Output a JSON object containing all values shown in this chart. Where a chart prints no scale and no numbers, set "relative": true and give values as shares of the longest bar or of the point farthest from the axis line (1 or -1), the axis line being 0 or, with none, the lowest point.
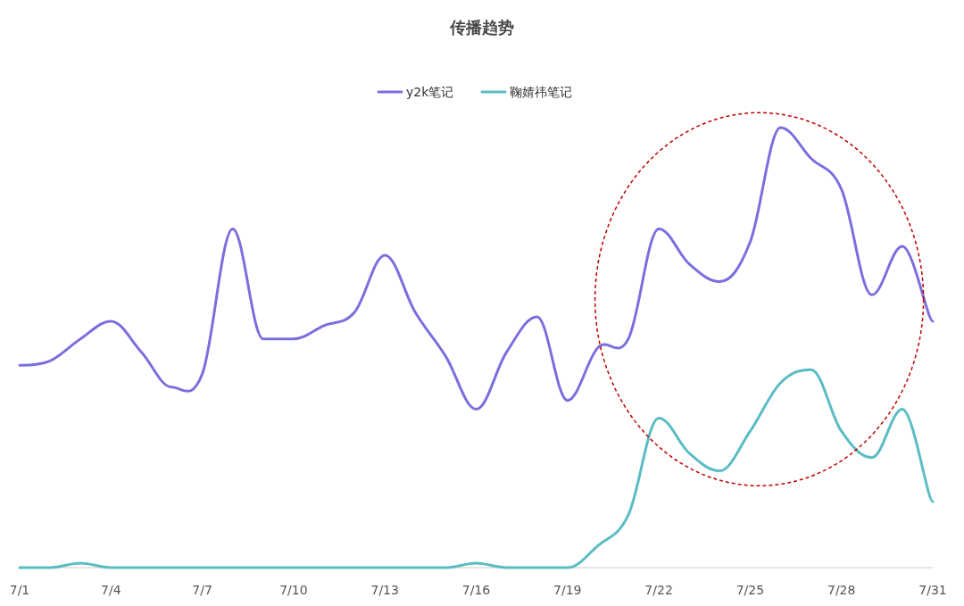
{
  "chart_data": {
    "type": "line",
    "title": "传播趋势",
    "relative": true,
    "legend": "top",
    "grid": false,
    "marker": "none",
    "categories": [
      "7/1",
      null,
      null,
      "7/4",
      null,
      null,
      "7/7",
      null,
      null,
      "7/10",
      null,
      null,
      "7/13",
      null,
      null,
      "7/16",
      null,
      null,
      "7/19",
      null,
      null,
      "7/22",
      null,
      null,
      "7/25",
      null,
      null,
      "7/28",
      null,
      null,
      "7/31"
    ],
    "series": [
      {
        "name": "y2k笔记",
        "color": "#7b6fde",
        "values": [
          0.46,
          0.47,
          0.52,
          0.56,
          0.49,
          0.41,
          0.44,
          0.77,
          0.52,
          0.52,
          0.55,
          0.58,
          0.71,
          0.58,
          0.48,
          0.36,
          0.49,
          0.57,
          0.38,
          0.5,
          0.52,
          0.77,
          0.69,
          0.65,
          0.74,
          1,
          0.93,
          0.86,
          0.62,
          0.73,
          0.56
        ]
      },
      {
        "name": "鞠婧祎笔记",
        "color": "#5bbcc4",
        "values": [
          0,
          0,
          0.01,
          0,
          0,
          0,
          0,
          0,
          0,
          0,
          0,
          0,
          0,
          0,
          0,
          0.01,
          0,
          0,
          0,
          0.05,
          0.12,
          0.34,
          0.26,
          0.22,
          0.31,
          0.42,
          0.45,
          0.31,
          0.25,
          0.36,
          0.15
        ]
      }
    ]
  }
}
